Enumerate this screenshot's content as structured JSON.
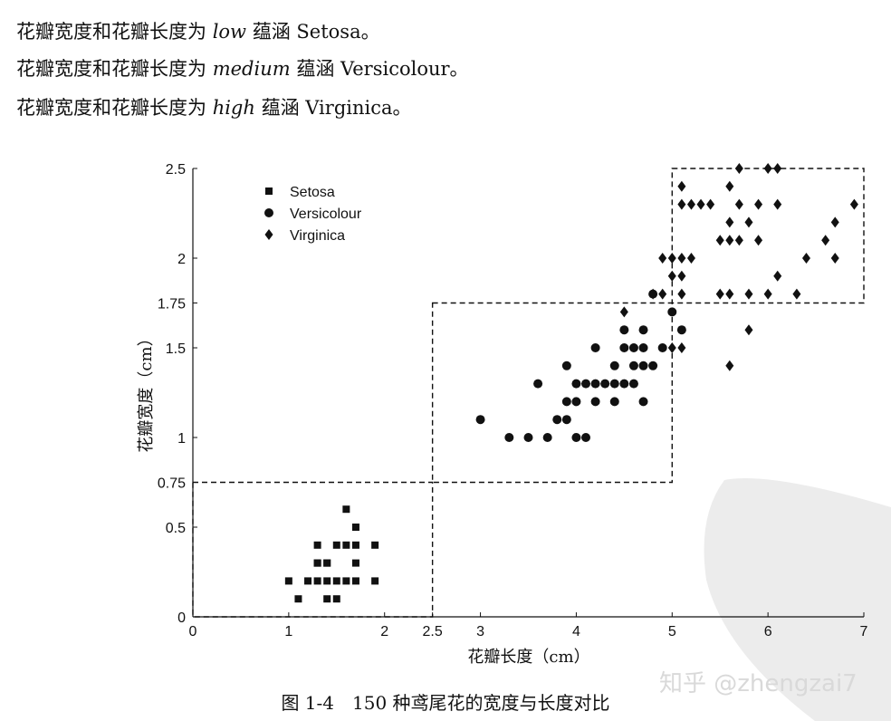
{
  "text": {
    "rules": [
      {
        "prefix": "花瓣宽度和花瓣长度为 ",
        "level": "low",
        "middle": " 蕴涵 ",
        "species": "Setosa。"
      },
      {
        "prefix": "花瓣宽度和花瓣长度为 ",
        "level": "medium",
        "middle": " 蕴涵 ",
        "species": "Versicolour。"
      },
      {
        "prefix": "花瓣宽度和花瓣长度为 ",
        "level": "high",
        "middle": " 蕴涵 ",
        "species": "Virginica。"
      }
    ],
    "caption": "图 1-4　150 种鸢尾花的宽度与长度对比",
    "watermark": "知乎 @zhengzai7"
  },
  "colors": {
    "marker": "#111111",
    "watermark": "#e3e3e3"
  },
  "chart_data": {
    "type": "scatter",
    "title": "",
    "xlabel": "花瓣长度（cm）",
    "ylabel": "花瓣宽度（cm）",
    "xlim": [
      0,
      7
    ],
    "ylim": [
      0,
      2.5
    ],
    "xticks": [
      0,
      1,
      2,
      2.5,
      3,
      4,
      5,
      6,
      7
    ],
    "yticks": [
      0,
      0.5,
      0.75,
      1,
      1.5,
      1.75,
      2,
      2.5
    ],
    "grid": false,
    "legend": "top-left",
    "regions": [
      {
        "x": [
          0,
          2.5
        ],
        "y": [
          0,
          0.75
        ]
      },
      {
        "x": [
          2.5,
          5
        ],
        "y": [
          0.75,
          1.75
        ]
      },
      {
        "x": [
          5,
          7
        ],
        "y": [
          1.75,
          2.5
        ]
      }
    ],
    "series": [
      {
        "name": "Setosa",
        "marker": "square",
        "points": [
          [
            1.0,
            0.2
          ],
          [
            1.1,
            0.1
          ],
          [
            1.2,
            0.2
          ],
          [
            1.3,
            0.2
          ],
          [
            1.3,
            0.3
          ],
          [
            1.3,
            0.4
          ],
          [
            1.4,
            0.1
          ],
          [
            1.4,
            0.2
          ],
          [
            1.4,
            0.3
          ],
          [
            1.5,
            0.1
          ],
          [
            1.5,
            0.2
          ],
          [
            1.5,
            0.4
          ],
          [
            1.6,
            0.2
          ],
          [
            1.6,
            0.4
          ],
          [
            1.6,
            0.6
          ],
          [
            1.7,
            0.2
          ],
          [
            1.7,
            0.3
          ],
          [
            1.7,
            0.4
          ],
          [
            1.7,
            0.5
          ],
          [
            1.9,
            0.2
          ],
          [
            1.9,
            0.4
          ],
          [
            1.3,
            0.3
          ],
          [
            1.4,
            0.3
          ]
        ]
      },
      {
        "name": "Versicolour",
        "marker": "circle",
        "points": [
          [
            3.0,
            1.1
          ],
          [
            3.3,
            1.0
          ],
          [
            3.5,
            1.0
          ],
          [
            3.6,
            1.3
          ],
          [
            3.7,
            1.0
          ],
          [
            3.8,
            1.1
          ],
          [
            3.9,
            1.1
          ],
          [
            3.9,
            1.2
          ],
          [
            3.9,
            1.4
          ],
          [
            4.0,
            1.0
          ],
          [
            4.0,
            1.2
          ],
          [
            4.0,
            1.3
          ],
          [
            4.1,
            1.0
          ],
          [
            4.1,
            1.3
          ],
          [
            4.2,
            1.2
          ],
          [
            4.2,
            1.3
          ],
          [
            4.2,
            1.5
          ],
          [
            4.3,
            1.3
          ],
          [
            4.4,
            1.2
          ],
          [
            4.4,
            1.3
          ],
          [
            4.4,
            1.4
          ],
          [
            4.5,
            1.3
          ],
          [
            4.5,
            1.5
          ],
          [
            4.5,
            1.6
          ],
          [
            4.6,
            1.3
          ],
          [
            4.6,
            1.4
          ],
          [
            4.6,
            1.5
          ],
          [
            4.7,
            1.2
          ],
          [
            4.7,
            1.4
          ],
          [
            4.7,
            1.5
          ],
          [
            4.7,
            1.6
          ],
          [
            4.8,
            1.4
          ],
          [
            4.8,
            1.8
          ],
          [
            4.9,
            1.5
          ],
          [
            5.0,
            1.7
          ],
          [
            5.1,
            1.6
          ]
        ]
      },
      {
        "name": "Virginica",
        "marker": "diamond",
        "points": [
          [
            4.5,
            1.7
          ],
          [
            4.8,
            1.8
          ],
          [
            4.9,
            1.8
          ],
          [
            4.9,
            2.0
          ],
          [
            5.0,
            1.5
          ],
          [
            5.0,
            1.9
          ],
          [
            5.0,
            2.0
          ],
          [
            5.1,
            1.5
          ],
          [
            5.1,
            1.8
          ],
          [
            5.1,
            1.9
          ],
          [
            5.1,
            2.0
          ],
          [
            5.1,
            2.3
          ],
          [
            5.1,
            2.4
          ],
          [
            5.2,
            2.0
          ],
          [
            5.2,
            2.3
          ],
          [
            5.3,
            2.3
          ],
          [
            5.4,
            2.3
          ],
          [
            5.5,
            1.8
          ],
          [
            5.5,
            2.1
          ],
          [
            5.6,
            1.4
          ],
          [
            5.6,
            1.8
          ],
          [
            5.6,
            2.1
          ],
          [
            5.6,
            2.2
          ],
          [
            5.6,
            2.4
          ],
          [
            5.7,
            2.1
          ],
          [
            5.7,
            2.3
          ],
          [
            5.7,
            2.5
          ],
          [
            5.8,
            1.6
          ],
          [
            5.8,
            1.8
          ],
          [
            5.8,
            2.2
          ],
          [
            5.9,
            2.1
          ],
          [
            5.9,
            2.3
          ],
          [
            6.0,
            1.8
          ],
          [
            6.0,
            2.5
          ],
          [
            6.1,
            1.9
          ],
          [
            6.1,
            2.3
          ],
          [
            6.1,
            2.5
          ],
          [
            6.3,
            1.8
          ],
          [
            6.4,
            2.0
          ],
          [
            6.6,
            2.1
          ],
          [
            6.7,
            2.0
          ],
          [
            6.7,
            2.2
          ],
          [
            6.9,
            2.3
          ]
        ]
      }
    ]
  }
}
